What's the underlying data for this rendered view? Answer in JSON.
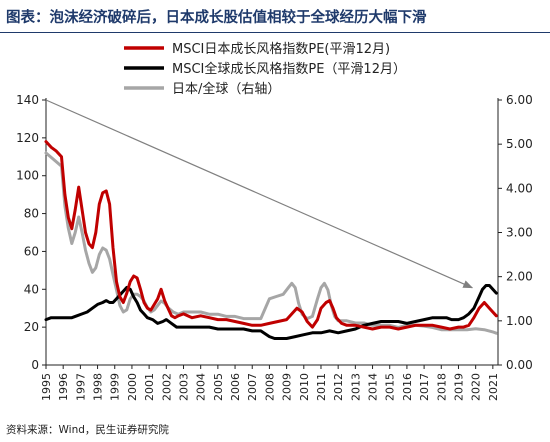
{
  "title": "图表：泡沫经济破碎后，日本成长股估值相较于全球经历大幅下滑",
  "source": "资料来源：Wind，民生证券研究院",
  "chart_data": {
    "type": "line",
    "left_axis": {
      "ticks": [
        0,
        20,
        40,
        60,
        80,
        100,
        120,
        140
      ],
      "ylim": [
        0,
        140
      ]
    },
    "right_axis": {
      "ticks": [
        "0.00",
        "1.00",
        "2.00",
        "3.00",
        "4.00",
        "5.00",
        "6.00"
      ],
      "ylim": [
        0,
        6
      ]
    },
    "x_ticks": [
      "1995",
      "1996",
      "1997",
      "1998",
      "1999",
      "2000",
      "2001",
      "2002",
      "2003",
      "2004",
      "2005",
      "2006",
      "2007",
      "2008",
      "2009",
      "2010",
      "2011",
      "2012",
      "2013",
      "2014",
      "2015",
      "2016",
      "2017",
      "2018",
      "2019",
      "2020",
      "2021"
    ],
    "xlim": [
      1995,
      2021.3
    ],
    "series": [
      {
        "name": "MSCI日本成长风格指数PE(平滑12月)",
        "color": "#c00000",
        "axis": "left",
        "points": [
          [
            1995.0,
            118
          ],
          [
            1995.3,
            115
          ],
          [
            1995.6,
            113
          ],
          [
            1995.9,
            110
          ],
          [
            1996.1,
            90
          ],
          [
            1996.3,
            78
          ],
          [
            1996.5,
            72
          ],
          [
            1996.7,
            82
          ],
          [
            1996.9,
            94
          ],
          [
            1997.1,
            82
          ],
          [
            1997.3,
            70
          ],
          [
            1997.5,
            64
          ],
          [
            1997.7,
            62
          ],
          [
            1997.9,
            70
          ],
          [
            1998.1,
            85
          ],
          [
            1998.3,
            91
          ],
          [
            1998.5,
            92
          ],
          [
            1998.7,
            85
          ],
          [
            1998.9,
            62
          ],
          [
            1999.1,
            44
          ],
          [
            1999.3,
            36
          ],
          [
            1999.5,
            33
          ],
          [
            1999.7,
            38
          ],
          [
            1999.9,
            44
          ],
          [
            2000.1,
            47
          ],
          [
            2000.3,
            46
          ],
          [
            2000.5,
            40
          ],
          [
            2000.7,
            33
          ],
          [
            2000.9,
            30
          ],
          [
            2001.1,
            29
          ],
          [
            2001.3,
            32
          ],
          [
            2001.5,
            35
          ],
          [
            2001.7,
            40
          ],
          [
            2001.9,
            34
          ],
          [
            2002.1,
            30
          ],
          [
            2002.3,
            26
          ],
          [
            2002.5,
            25
          ],
          [
            2002.7,
            26
          ],
          [
            2003.0,
            27
          ],
          [
            2003.5,
            25
          ],
          [
            2004.0,
            26
          ],
          [
            2004.5,
            25
          ],
          [
            2005.0,
            24
          ],
          [
            2005.5,
            24
          ],
          [
            2006.0,
            23
          ],
          [
            2006.5,
            22
          ],
          [
            2007.0,
            21
          ],
          [
            2007.5,
            21
          ],
          [
            2008.0,
            22
          ],
          [
            2008.5,
            23
          ],
          [
            2009.0,
            24
          ],
          [
            2009.3,
            27
          ],
          [
            2009.6,
            30
          ],
          [
            2009.9,
            28
          ],
          [
            2010.2,
            23
          ],
          [
            2010.5,
            20
          ],
          [
            2010.8,
            24
          ],
          [
            2011.0,
            30
          ],
          [
            2011.3,
            33
          ],
          [
            2011.5,
            34
          ],
          [
            2011.7,
            30
          ],
          [
            2011.9,
            25
          ],
          [
            2012.2,
            22
          ],
          [
            2012.5,
            21
          ],
          [
            2013.0,
            21
          ],
          [
            2013.5,
            20
          ],
          [
            2014.0,
            19
          ],
          [
            2014.5,
            20
          ],
          [
            2015.0,
            20
          ],
          [
            2015.5,
            19
          ],
          [
            2016.0,
            20
          ],
          [
            2016.5,
            21
          ],
          [
            2017.0,
            21
          ],
          [
            2017.5,
            21
          ],
          [
            2018.0,
            20
          ],
          [
            2018.5,
            19
          ],
          [
            2019.0,
            20
          ],
          [
            2019.3,
            20
          ],
          [
            2019.6,
            21
          ],
          [
            2019.9,
            25
          ],
          [
            2020.2,
            30
          ],
          [
            2020.5,
            33
          ],
          [
            2020.8,
            30
          ],
          [
            2021.0,
            28
          ],
          [
            2021.2,
            26
          ]
        ]
      },
      {
        "name": "MSCI全球成长风格指数PE（平滑12月）",
        "color": "#000000",
        "axis": "left",
        "points": [
          [
            1995.0,
            24
          ],
          [
            1995.3,
            25
          ],
          [
            1995.6,
            25
          ],
          [
            1995.9,
            25
          ],
          [
            1996.2,
            25
          ],
          [
            1996.5,
            25
          ],
          [
            1996.8,
            26
          ],
          [
            1997.1,
            27
          ],
          [
            1997.4,
            28
          ],
          [
            1997.7,
            30
          ],
          [
            1998.0,
            32
          ],
          [
            1998.3,
            33
          ],
          [
            1998.5,
            34
          ],
          [
            1998.7,
            33
          ],
          [
            1998.9,
            33
          ],
          [
            1999.1,
            35
          ],
          [
            1999.3,
            37
          ],
          [
            1999.5,
            39
          ],
          [
            1999.7,
            41
          ],
          [
            1999.9,
            40
          ],
          [
            2000.1,
            36
          ],
          [
            2000.3,
            33
          ],
          [
            2000.5,
            29
          ],
          [
            2000.7,
            27
          ],
          [
            2000.9,
            25
          ],
          [
            2001.2,
            24
          ],
          [
            2001.5,
            22
          ],
          [
            2001.8,
            23
          ],
          [
            2002.0,
            24
          ],
          [
            2002.3,
            22
          ],
          [
            2002.6,
            20
          ],
          [
            2003.0,
            20
          ],
          [
            2003.5,
            20
          ],
          [
            2004.0,
            20
          ],
          [
            2004.5,
            20
          ],
          [
            2005.0,
            19
          ],
          [
            2005.5,
            19
          ],
          [
            2006.0,
            19
          ],
          [
            2006.5,
            19
          ],
          [
            2007.0,
            18
          ],
          [
            2007.5,
            18
          ],
          [
            2008.0,
            15
          ],
          [
            2008.3,
            14
          ],
          [
            2008.6,
            14
          ],
          [
            2009.0,
            14
          ],
          [
            2009.5,
            15
          ],
          [
            2010.0,
            16
          ],
          [
            2010.5,
            17
          ],
          [
            2011.0,
            17
          ],
          [
            2011.5,
            18
          ],
          [
            2012.0,
            17
          ],
          [
            2012.5,
            18
          ],
          [
            2013.0,
            19
          ],
          [
            2013.5,
            21
          ],
          [
            2014.0,
            22
          ],
          [
            2014.5,
            23
          ],
          [
            2015.0,
            23
          ],
          [
            2015.5,
            23
          ],
          [
            2016.0,
            22
          ],
          [
            2016.5,
            23
          ],
          [
            2017.0,
            24
          ],
          [
            2017.5,
            25
          ],
          [
            2018.0,
            25
          ],
          [
            2018.3,
            25
          ],
          [
            2018.6,
            24
          ],
          [
            2019.0,
            24
          ],
          [
            2019.3,
            25
          ],
          [
            2019.6,
            27
          ],
          [
            2019.9,
            30
          ],
          [
            2020.2,
            36
          ],
          [
            2020.4,
            40
          ],
          [
            2020.6,
            42
          ],
          [
            2020.8,
            42
          ],
          [
            2021.0,
            40
          ],
          [
            2021.2,
            38
          ]
        ]
      },
      {
        "name": "日本/全球（右轴）",
        "color": "#a6a6a6",
        "axis": "right",
        "points": [
          [
            1995.0,
            4.8
          ],
          [
            1995.3,
            4.7
          ],
          [
            1995.6,
            4.6
          ],
          [
            1995.9,
            4.5
          ],
          [
            1996.1,
            3.6
          ],
          [
            1996.3,
            3.1
          ],
          [
            1996.5,
            2.75
          ],
          [
            1996.7,
            3.0
          ],
          [
            1996.9,
            3.35
          ],
          [
            1997.1,
            3.0
          ],
          [
            1997.3,
            2.6
          ],
          [
            1997.5,
            2.3
          ],
          [
            1997.7,
            2.1
          ],
          [
            1997.9,
            2.2
          ],
          [
            1998.1,
            2.5
          ],
          [
            1998.3,
            2.65
          ],
          [
            1998.5,
            2.6
          ],
          [
            1998.7,
            2.4
          ],
          [
            1998.9,
            2.05
          ],
          [
            1999.1,
            1.7
          ],
          [
            1999.3,
            1.35
          ],
          [
            1999.5,
            1.2
          ],
          [
            1999.7,
            1.25
          ],
          [
            1999.9,
            1.5
          ],
          [
            2000.1,
            1.6
          ],
          [
            2000.3,
            1.6
          ],
          [
            2000.5,
            1.55
          ],
          [
            2000.7,
            1.45
          ],
          [
            2000.9,
            1.3
          ],
          [
            2001.1,
            1.2
          ],
          [
            2001.3,
            1.25
          ],
          [
            2001.5,
            1.35
          ],
          [
            2001.7,
            1.45
          ],
          [
            2001.9,
            1.4
          ],
          [
            2002.1,
            1.3
          ],
          [
            2002.4,
            1.2
          ],
          [
            2002.7,
            1.15
          ],
          [
            2003.0,
            1.2
          ],
          [
            2003.5,
            1.2
          ],
          [
            2004.0,
            1.2
          ],
          [
            2004.5,
            1.15
          ],
          [
            2005.0,
            1.15
          ],
          [
            2005.5,
            1.1
          ],
          [
            2006.0,
            1.1
          ],
          [
            2006.5,
            1.05
          ],
          [
            2007.0,
            1.05
          ],
          [
            2007.5,
            1.05
          ],
          [
            2008.0,
            1.5
          ],
          [
            2008.4,
            1.55
          ],
          [
            2008.8,
            1.6
          ],
          [
            2009.1,
            1.75
          ],
          [
            2009.3,
            1.85
          ],
          [
            2009.5,
            1.75
          ],
          [
            2009.7,
            1.4
          ],
          [
            2009.9,
            1.15
          ],
          [
            2010.2,
            1.05
          ],
          [
            2010.5,
            1.1
          ],
          [
            2010.8,
            1.5
          ],
          [
            2011.0,
            1.75
          ],
          [
            2011.2,
            1.85
          ],
          [
            2011.4,
            1.7
          ],
          [
            2011.6,
            1.35
          ],
          [
            2011.8,
            1.1
          ],
          [
            2012.0,
            1.0
          ],
          [
            2012.5,
            1.0
          ],
          [
            2013.0,
            0.95
          ],
          [
            2013.5,
            0.95
          ],
          [
            2014.0,
            0.9
          ],
          [
            2014.5,
            0.9
          ],
          [
            2015.0,
            0.9
          ],
          [
            2015.5,
            0.85
          ],
          [
            2016.0,
            0.9
          ],
          [
            2016.5,
            0.9
          ],
          [
            2017.0,
            0.88
          ],
          [
            2017.5,
            0.85
          ],
          [
            2018.0,
            0.8
          ],
          [
            2018.5,
            0.8
          ],
          [
            2019.0,
            0.8
          ],
          [
            2019.5,
            0.8
          ],
          [
            2020.0,
            0.82
          ],
          [
            2020.5,
            0.8
          ],
          [
            2021.0,
            0.75
          ],
          [
            2021.2,
            0.72
          ]
        ]
      }
    ],
    "trend_arrow": {
      "from": [
        1995.0,
        6.0
      ],
      "to": [
        2019.8,
        1.75
      ],
      "axis": "right",
      "color": "#808080"
    },
    "legend_position": "top-center",
    "grid": false
  }
}
